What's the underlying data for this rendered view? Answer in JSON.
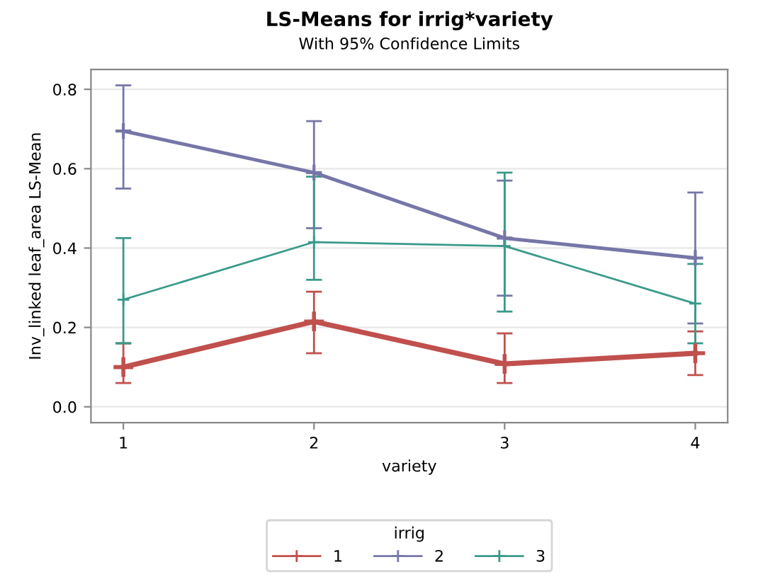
{
  "chart_data": {
    "type": "line",
    "title": "LS-Means for irrig*variety",
    "subtitle": "With 95% Confidence Limits",
    "xlabel": "variety",
    "ylabel": "Inv_linked leaf_area LS-Mean",
    "legend_title": "irrig",
    "categories": [
      "1",
      "2",
      "3",
      "4"
    ],
    "series": [
      {
        "name": "1",
        "color": "#c0504d",
        "values": [
          0.1,
          0.215,
          0.108,
          0.135
        ],
        "errors": [
          [
            0.06,
            0.16
          ],
          [
            0.135,
            0.29
          ],
          [
            0.06,
            0.185
          ],
          [
            0.08,
            0.19
          ]
        ]
      },
      {
        "name": "2",
        "color": "#7676a8",
        "values": [
          0.695,
          0.59,
          0.425,
          0.375
        ],
        "errors": [
          [
            0.55,
            0.81
          ],
          [
            0.45,
            0.72
          ],
          [
            0.28,
            0.57
          ],
          [
            0.21,
            0.54
          ]
        ]
      },
      {
        "name": "3",
        "color": "#3a9a8a",
        "values": [
          0.27,
          0.415,
          0.405,
          0.26
        ],
        "errors": [
          [
            0.16,
            0.425
          ],
          [
            0.32,
            0.58
          ],
          [
            0.24,
            0.59
          ],
          [
            0.16,
            0.36
          ]
        ]
      }
    ],
    "ylim": [
      -0.04,
      0.85
    ],
    "yticks": [
      {
        "value": 0,
        "label": "0.0"
      },
      0.2,
      0.4,
      0.6,
      0.8
    ],
    "grid": "y",
    "legend": "bottom",
    "marker": "cross",
    "line_style": "solid"
  }
}
